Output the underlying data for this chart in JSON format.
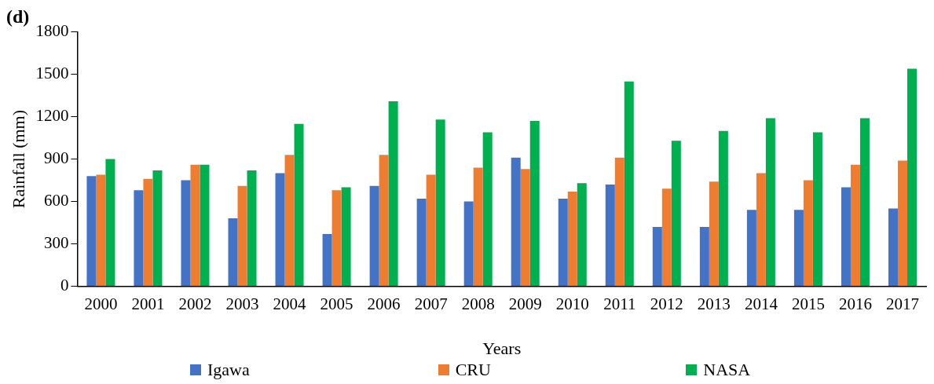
{
  "chart_data": {
    "type": "bar",
    "title": "(d)",
    "xlabel": "Years",
    "ylabel": "Rainfall (mm)",
    "categories": [
      "2000",
      "2001",
      "2002",
      "2003",
      "2004",
      "2005",
      "2006",
      "2007",
      "2008",
      "2009",
      "2010",
      "2011",
      "2012",
      "2013",
      "2014",
      "2015",
      "2016",
      "2017"
    ],
    "series": [
      {
        "name": "Igawa",
        "color": "#4472c4",
        "values": [
          780,
          680,
          750,
          480,
          800,
          370,
          710,
          620,
          600,
          910,
          620,
          720,
          420,
          420,
          540,
          540,
          700,
          550
        ]
      },
      {
        "name": "CRU",
        "color": "#ed7d31",
        "values": [
          790,
          760,
          860,
          710,
          930,
          680,
          930,
          790,
          840,
          830,
          670,
          910,
          690,
          740,
          800,
          750,
          860,
          890
        ]
      },
      {
        "name": "NASA",
        "color": "#00b050",
        "values": [
          900,
          820,
          860,
          820,
          1150,
          700,
          1310,
          1180,
          1090,
          1170,
          730,
          1450,
          1030,
          1100,
          1190,
          1090,
          1190,
          1540
        ]
      }
    ],
    "ylim": [
      0,
      1800
    ],
    "yticks": [
      0,
      300,
      600,
      900,
      1200,
      1500,
      1800
    ],
    "grid": false,
    "legend": "bottom"
  }
}
